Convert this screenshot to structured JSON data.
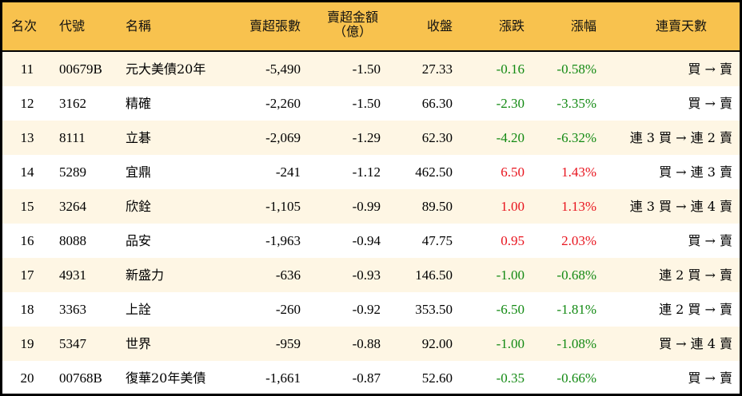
{
  "header": {
    "rank": "名次",
    "code": "代號",
    "name": "名稱",
    "net_sell_lots": "賣超張數",
    "net_sell_amount_line1": "賣超金額",
    "net_sell_amount_line2": "（億）",
    "close": "收盤",
    "change": "漲跌",
    "change_pct": "漲幅",
    "streak": "連賣天數"
  },
  "colors": {
    "header_bg": "#F8C24E",
    "stripe_bg": "#FEF6E4",
    "up": "#E8141E",
    "down": "#138A13"
  },
  "rows": [
    {
      "rank": "11",
      "code": "00679B",
      "name": "元大美債20年",
      "lots": "-5,490",
      "amount": "-1.50",
      "close": "27.33",
      "change": "-0.16",
      "pct": "-0.58%",
      "dir": "down",
      "streak": "買 → 賣"
    },
    {
      "rank": "12",
      "code": "3162",
      "name": "精確",
      "lots": "-2,260",
      "amount": "-1.50",
      "close": "66.30",
      "change": "-2.30",
      "pct": "-3.35%",
      "dir": "down",
      "streak": "買 → 賣"
    },
    {
      "rank": "13",
      "code": "8111",
      "name": "立碁",
      "lots": "-2,069",
      "amount": "-1.29",
      "close": "62.30",
      "change": "-4.20",
      "pct": "-6.32%",
      "dir": "down",
      "streak": "連 3 買 → 連 2 賣"
    },
    {
      "rank": "14",
      "code": "5289",
      "name": "宜鼎",
      "lots": "-241",
      "amount": "-1.12",
      "close": "462.50",
      "change": "6.50",
      "pct": "1.43%",
      "dir": "up",
      "streak": "買 → 連 3 賣"
    },
    {
      "rank": "15",
      "code": "3264",
      "name": "欣銓",
      "lots": "-1,105",
      "amount": "-0.99",
      "close": "89.50",
      "change": "1.00",
      "pct": "1.13%",
      "dir": "up",
      "streak": "連 3 買 → 連 4 賣"
    },
    {
      "rank": "16",
      "code": "8088",
      "name": "品安",
      "lots": "-1,963",
      "amount": "-0.94",
      "close": "47.75",
      "change": "0.95",
      "pct": "2.03%",
      "dir": "up",
      "streak": "買 → 賣"
    },
    {
      "rank": "17",
      "code": "4931",
      "name": "新盛力",
      "lots": "-636",
      "amount": "-0.93",
      "close": "146.50",
      "change": "-1.00",
      "pct": "-0.68%",
      "dir": "down",
      "streak": "連 2 買 → 賣"
    },
    {
      "rank": "18",
      "code": "3363",
      "name": "上詮",
      "lots": "-260",
      "amount": "-0.92",
      "close": "353.50",
      "change": "-6.50",
      "pct": "-1.81%",
      "dir": "down",
      "streak": "連 2 買 → 賣"
    },
    {
      "rank": "19",
      "code": "5347",
      "name": "世界",
      "lots": "-959",
      "amount": "-0.88",
      "close": "92.00",
      "change": "-1.00",
      "pct": "-1.08%",
      "dir": "down",
      "streak": "買 → 連 4 賣"
    },
    {
      "rank": "20",
      "code": "00768B",
      "name": "復華20年美債",
      "lots": "-1,661",
      "amount": "-0.87",
      "close": "52.60",
      "change": "-0.35",
      "pct": "-0.66%",
      "dir": "down",
      "streak": "買 → 賣"
    }
  ]
}
